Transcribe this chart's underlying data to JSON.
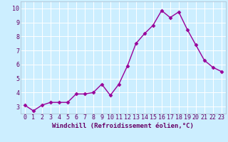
{
  "x": [
    0,
    1,
    2,
    3,
    4,
    5,
    6,
    7,
    8,
    9,
    10,
    11,
    12,
    13,
    14,
    15,
    16,
    17,
    18,
    19,
    20,
    21,
    22,
    23
  ],
  "y": [
    3.1,
    2.7,
    3.1,
    3.3,
    3.3,
    3.3,
    3.9,
    3.9,
    4.0,
    4.6,
    3.8,
    4.6,
    5.9,
    7.5,
    8.2,
    8.8,
    9.85,
    9.35,
    9.75,
    8.5,
    7.4,
    6.3,
    5.8,
    5.5
  ],
  "xlabel": "Windchill (Refroidissement éolien,°C)",
  "ylim": [
    2.5,
    10.5
  ],
  "xlim": [
    -0.5,
    23.5
  ],
  "yticks": [
    3,
    4,
    5,
    6,
    7,
    8,
    9,
    10
  ],
  "xticks": [
    0,
    1,
    2,
    3,
    4,
    5,
    6,
    7,
    8,
    9,
    10,
    11,
    12,
    13,
    14,
    15,
    16,
    17,
    18,
    19,
    20,
    21,
    22,
    23
  ],
  "line_color": "#990099",
  "marker": "D",
  "marker_size": 2.5,
  "bg_color": "#cceeff",
  "grid_color": "#ffffff",
  "axis_label_color": "#660066",
  "tick_label_color": "#660066",
  "xlabel_fontsize": 6.5,
  "tick_fontsize": 6,
  "line_width": 1.0,
  "border_color": "#aabbcc"
}
